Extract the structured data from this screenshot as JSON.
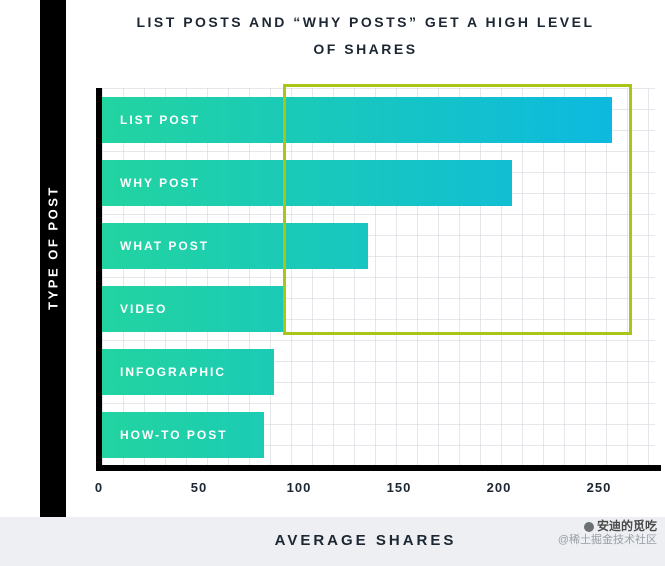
{
  "title": {
    "line1": "LIST POSTS AND “WHY POSTS” GET A HIGH LEVEL",
    "line2": "OF SHARES"
  },
  "axes": {
    "y_label": "TYPE OF POST",
    "x_label": "AVERAGE SHARES"
  },
  "watermark": {
    "line1": "安迪的觅吃",
    "line2": "@稀土掘金技术社区"
  },
  "chart_data": {
    "type": "bar",
    "orientation": "horizontal",
    "title": "LIST POSTS AND “WHY POSTS” GET A HIGH LEVEL OF SHARES",
    "xlabel": "AVERAGE SHARES",
    "ylabel": "TYPE OF POST",
    "categories": [
      "LIST POST",
      "WHY POST",
      "WHAT POST",
      "VIDEO",
      "INFOGRAPHIC",
      "HOW-TO POST"
    ],
    "values": [
      255,
      205,
      133,
      92,
      86,
      81
    ],
    "xticks": [
      0,
      50,
      100,
      150,
      200,
      250
    ],
    "xlim": [
      0,
      278
    ],
    "grid": true,
    "legend": false,
    "bar_gradient": [
      "#22d4a0",
      "#0bb7e5"
    ],
    "annotation": {
      "type": "highlight-box",
      "color": "#a9c51a",
      "covers": [
        "LIST POST",
        "WHY POST",
        "WHAT POST",
        "VIDEO"
      ],
      "x_value_range": [
        92,
        262
      ]
    }
  }
}
